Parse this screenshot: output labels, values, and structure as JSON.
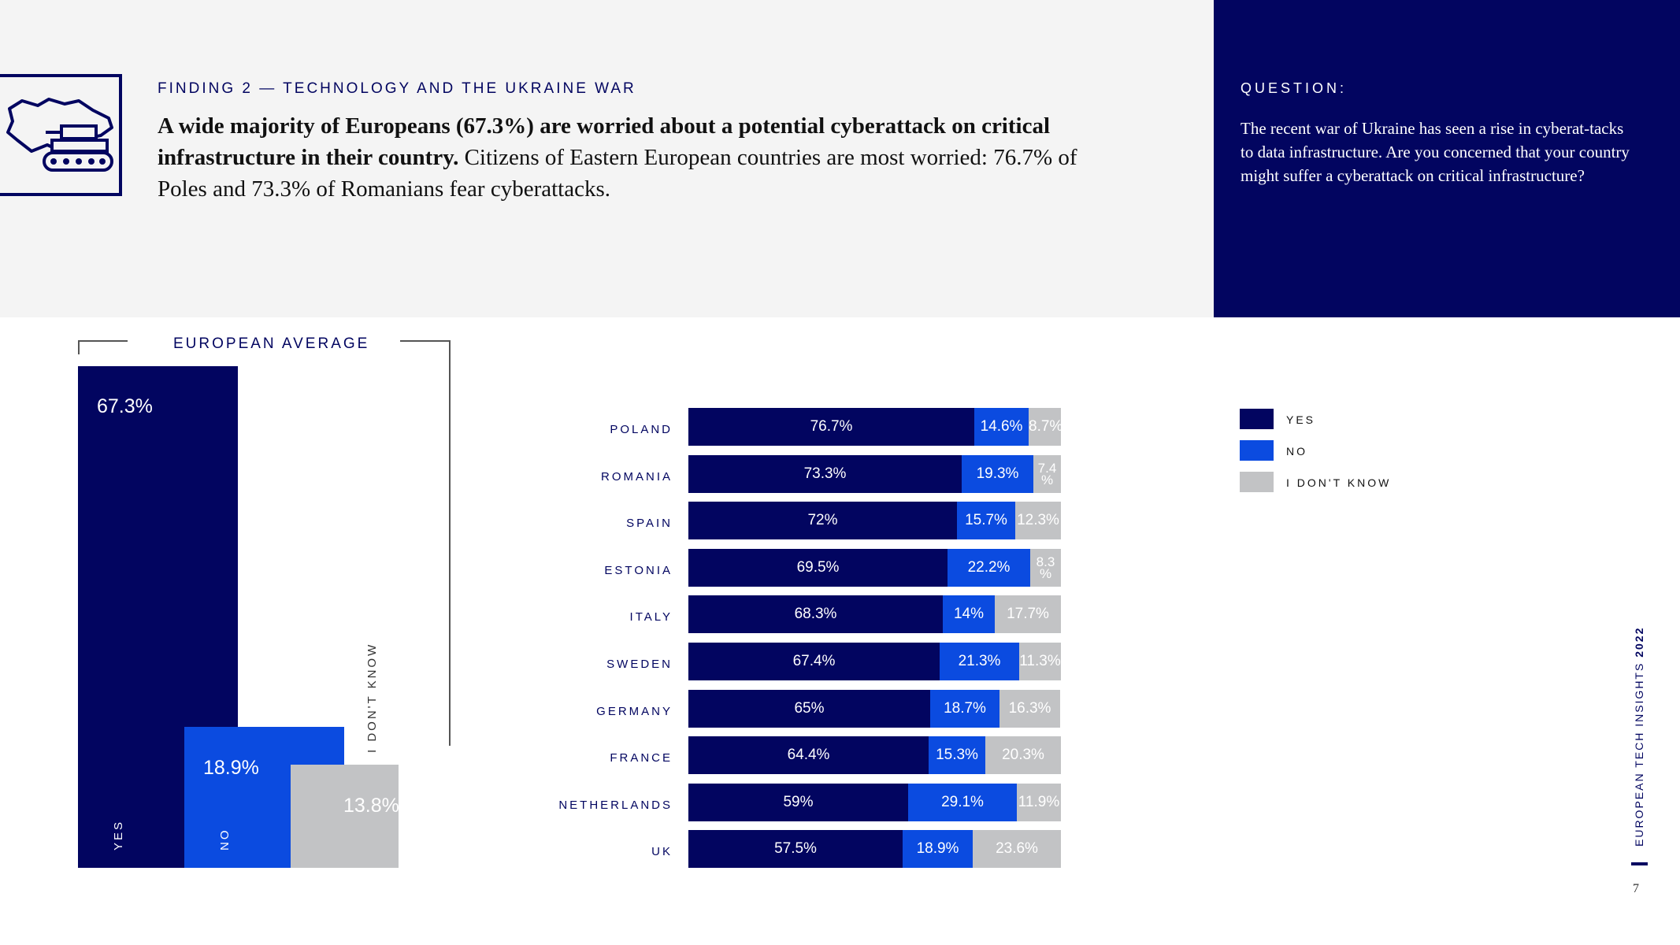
{
  "header": {
    "eyebrow": "FINDING 2 — TECHNOLOGY AND THE UKRAINE WAR",
    "headline_bold": "A wide majority of Europeans (67.3%) are worried about a potential cyberattack on critical infrastructure in their country.",
    "headline_rest": " Citizens of Eastern European countries are most worried: 76.7% of Poles and 73.3% of Romanians fear cyberattacks."
  },
  "question": {
    "title": "QUESTION:",
    "text": "The recent war of Ukraine has seen a rise in cyberat-tacks to data infrastructure. Are you concerned that your country might suffer a cyberattack on critical infrastructure?"
  },
  "icon": {
    "name": "ukraine-map-tank-icon"
  },
  "colors": {
    "yes": "#020560",
    "no": "#0b4be0",
    "dontknow": "#c2c3c5",
    "panel": "#020560",
    "band": "#f4f4f4"
  },
  "chart_data": [
    {
      "type": "bar",
      "title": "EUROPEAN AVERAGE",
      "categories": [
        "YES",
        "NO",
        "I DON'T KNOW"
      ],
      "values": [
        67.3,
        18.9,
        13.8
      ],
      "value_labels": [
        "67.3%",
        "18.9%",
        "13.8%"
      ],
      "ylim": [
        0,
        67.3
      ]
    },
    {
      "type": "bar",
      "stacked": true,
      "orientation": "horizontal",
      "categories": [
        "POLAND",
        "ROMANIA",
        "SPAIN",
        "ESTONIA",
        "ITALY",
        "SWEDEN",
        "GERMANY",
        "FRANCE",
        "NETHERLANDS",
        "UK"
      ],
      "series": [
        {
          "name": "YES",
          "values": [
            76.7,
            73.3,
            72,
            69.5,
            68.3,
            67.4,
            65,
            64.4,
            59,
            57.5
          ],
          "labels": [
            "76.7%",
            "73.3%",
            "72%",
            "69.5%",
            "68.3%",
            "67.4%",
            "65%",
            "64.4%",
            "59%",
            "57.5%"
          ]
        },
        {
          "name": "NO",
          "values": [
            14.6,
            19.3,
            15.7,
            22.2,
            14,
            21.3,
            18.7,
            15.3,
            29.1,
            18.9
          ],
          "labels": [
            "14.6%",
            "19.3%",
            "15.7%",
            "22.2%",
            "14%",
            "21.3%",
            "18.7%",
            "15.3%",
            "29.1%",
            "18.9%"
          ]
        },
        {
          "name": "I DON'T KNOW",
          "values": [
            8.7,
            7.4,
            12.3,
            8.3,
            17.7,
            11.3,
            16.3,
            20.3,
            11.9,
            23.6
          ],
          "labels": [
            "8.7%",
            "7.4 %",
            "12.3%",
            "8.3 %",
            "17.7%",
            "11.3%",
            "16.3%",
            "20.3%",
            "11.9%",
            "23.6%"
          ]
        }
      ],
      "legend": "right",
      "xlim": [
        0,
        100
      ]
    }
  ],
  "footer": {
    "brand": "EUROPEAN TECH INSIGHTS",
    "year": "2022",
    "page": "7"
  }
}
